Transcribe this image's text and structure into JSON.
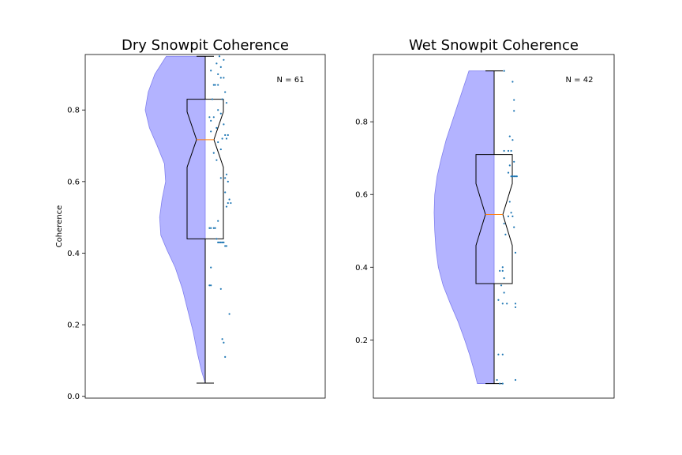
{
  "chart_data": [
    {
      "type": "violin+box+scatter",
      "title": "Dry Snowpit Coherence",
      "ylabel": "Coherence",
      "ylim": [
        -0.005,
        0.955
      ],
      "yticks": [
        0.0,
        0.2,
        0.4,
        0.6,
        0.8
      ],
      "ytick_labels": [
        "0.0",
        "0.2",
        "0.4",
        "0.6",
        "0.8"
      ],
      "annotation": "N = 61",
      "violin_color": "#b3b3ff",
      "violin_edge": "#8080ee",
      "box": {
        "whislo": 0.037,
        "q1": 0.44,
        "median": 0.717,
        "q3": 0.83,
        "whishi": 0.95,
        "notch_lo": 0.64,
        "notch_hi": 0.795,
        "median_color": "#ff7f0e"
      },
      "density": [
        [
          0.037,
          0.0
        ],
        [
          0.07,
          0.06
        ],
        [
          0.12,
          0.13
        ],
        [
          0.18,
          0.2
        ],
        [
          0.24,
          0.29
        ],
        [
          0.3,
          0.38
        ],
        [
          0.36,
          0.5
        ],
        [
          0.41,
          0.64
        ],
        [
          0.45,
          0.74
        ],
        [
          0.5,
          0.76
        ],
        [
          0.55,
          0.72
        ],
        [
          0.6,
          0.66
        ],
        [
          0.65,
          0.68
        ],
        [
          0.7,
          0.8
        ],
        [
          0.75,
          0.93
        ],
        [
          0.8,
          1.0
        ],
        [
          0.85,
          0.95
        ],
        [
          0.9,
          0.84
        ],
        [
          0.95,
          0.65
        ]
      ],
      "points": [
        0.95,
        0.94,
        0.93,
        0.92,
        0.91,
        0.9,
        0.89,
        0.89,
        0.87,
        0.87,
        0.87,
        0.85,
        0.83,
        0.83,
        0.82,
        0.8,
        0.79,
        0.78,
        0.78,
        0.77,
        0.76,
        0.75,
        0.74,
        0.73,
        0.73,
        0.72,
        0.72,
        0.71,
        0.69,
        0.68,
        0.66,
        0.62,
        0.61,
        0.61,
        0.6,
        0.57,
        0.55,
        0.54,
        0.54,
        0.53,
        0.49,
        0.47,
        0.47,
        0.47,
        0.47,
        0.44,
        0.43,
        0.43,
        0.43,
        0.43,
        0.43,
        0.42,
        0.42,
        0.36,
        0.31,
        0.31,
        0.3,
        0.23,
        0.16,
        0.15,
        0.11
      ],
      "jitter": [
        0.1,
        0.13,
        0.08,
        0.11,
        0.04,
        0.09,
        0.13,
        0.11,
        0.06,
        0.09,
        0.07,
        0.14,
        0.12,
        0.05,
        0.15,
        0.09,
        0.11,
        0.06,
        0.03,
        0.04,
        0.13,
        0.08,
        0.04,
        0.14,
        0.16,
        0.12,
        0.15,
        0.09,
        0.11,
        0.06,
        0.08,
        0.15,
        0.14,
        0.11,
        0.16,
        0.14,
        0.17,
        0.16,
        0.18,
        0.15,
        0.09,
        0.03,
        0.04,
        0.06,
        0.07,
        0.08,
        0.09,
        0.1,
        0.11,
        0.12,
        0.13,
        0.14,
        0.15,
        0.04,
        0.03,
        0.04,
        0.11,
        0.17,
        0.12,
        0.13,
        0.14
      ]
    },
    {
      "type": "violin+box+scatter",
      "title": "Wet Snowpit Coherence",
      "ylabel": "",
      "ylim": [
        0.04,
        0.985
      ],
      "yticks": [
        0.2,
        0.4,
        0.6,
        0.8
      ],
      "ytick_labels": [
        "0.2",
        "0.4",
        "0.6",
        "0.8"
      ],
      "annotation": "N = 42",
      "violin_color": "#b3b3ff",
      "violin_edge": "#8080ee",
      "box": {
        "whislo": 0.08,
        "q1": 0.355,
        "median": 0.545,
        "q3": 0.71,
        "whishi": 0.94,
        "notch_lo": 0.46,
        "notch_hi": 0.63,
        "median_color": "#ff7f0e"
      },
      "density": [
        [
          0.08,
          0.28
        ],
        [
          0.12,
          0.34
        ],
        [
          0.16,
          0.41
        ],
        [
          0.2,
          0.49
        ],
        [
          0.25,
          0.6
        ],
        [
          0.3,
          0.73
        ],
        [
          0.35,
          0.85
        ],
        [
          0.4,
          0.93
        ],
        [
          0.45,
          0.97
        ],
        [
          0.5,
          0.99
        ],
        [
          0.55,
          1.0
        ],
        [
          0.6,
          0.99
        ],
        [
          0.65,
          0.95
        ],
        [
          0.7,
          0.88
        ],
        [
          0.75,
          0.8
        ],
        [
          0.8,
          0.7
        ],
        [
          0.85,
          0.6
        ],
        [
          0.9,
          0.5
        ],
        [
          0.94,
          0.42
        ]
      ],
      "points": [
        0.94,
        0.91,
        0.86,
        0.83,
        0.76,
        0.75,
        0.72,
        0.72,
        0.72,
        0.69,
        0.68,
        0.66,
        0.65,
        0.65,
        0.65,
        0.65,
        0.65,
        0.58,
        0.55,
        0.54,
        0.54,
        0.52,
        0.51,
        0.49,
        0.44,
        0.4,
        0.39,
        0.39,
        0.37,
        0.35,
        0.33,
        0.31,
        0.3,
        0.3,
        0.3,
        0.29,
        0.16,
        0.16,
        0.09,
        0.09,
        0.08,
        0.08
      ],
      "jitter": [
        0.07,
        0.13,
        0.14,
        0.14,
        0.11,
        0.13,
        0.07,
        0.1,
        0.12,
        0.14,
        0.11,
        0.1,
        0.12,
        0.14,
        0.15,
        0.16,
        0.13,
        0.11,
        0.12,
        0.1,
        0.13,
        0.07,
        0.14,
        0.08,
        0.15,
        0.06,
        0.04,
        0.06,
        0.07,
        0.05,
        0.07,
        0.03,
        0.06,
        0.09,
        0.15,
        0.15,
        0.03,
        0.06,
        0.02,
        0.15,
        0.04,
        0.06
      ]
    }
  ]
}
